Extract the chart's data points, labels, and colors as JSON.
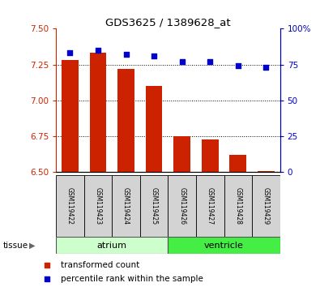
{
  "title": "GDS3625 / 1389628_at",
  "samples": [
    "GSM119422",
    "GSM119423",
    "GSM119424",
    "GSM119425",
    "GSM119426",
    "GSM119427",
    "GSM119428",
    "GSM119429"
  ],
  "transformed_count": [
    7.28,
    7.33,
    7.22,
    7.1,
    6.75,
    6.73,
    6.62,
    6.51
  ],
  "percentile_rank": [
    83,
    85,
    82,
    81,
    77,
    77,
    74,
    73
  ],
  "bar_baseline": 6.5,
  "ylim_left": [
    6.5,
    7.5
  ],
  "ylim_right": [
    0,
    100
  ],
  "yticks_left": [
    6.5,
    6.75,
    7.0,
    7.25,
    7.5
  ],
  "yticks_right": [
    0,
    25,
    50,
    75,
    100
  ],
  "ytick_labels_right": [
    "0",
    "25",
    "50",
    "75",
    "100%"
  ],
  "bar_color": "#cc2200",
  "dot_color": "#0000cc",
  "tissue_groups": [
    {
      "label": "atrium",
      "start": 0,
      "end": 4,
      "color": "#ccffcc"
    },
    {
      "label": "ventricle",
      "start": 4,
      "end": 8,
      "color": "#44ee44"
    }
  ],
  "tissue_label": "tissue",
  "left_axis_color": "#cc2200",
  "right_axis_color": "#0000cc",
  "legend_items": [
    {
      "label": "transformed count",
      "color": "#cc2200"
    },
    {
      "label": "percentile rank within the sample",
      "color": "#0000cc"
    }
  ]
}
